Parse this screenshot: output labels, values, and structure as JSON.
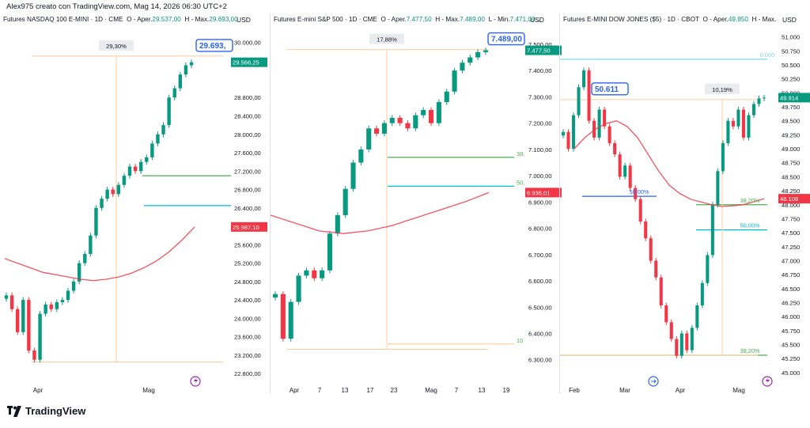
{
  "header": {
    "text": "Alex975 creato con TradingView.com, Mag 14, 2026 06:30 UTC+2"
  },
  "footer": {
    "brand": "TradingView"
  },
  "currency": "USD",
  "chart_data": [
    {
      "type": "candlestick",
      "title": "Futures NASDAQ 100 E-MINI · 1D · CME",
      "ohlc_text": {
        "o_label": "O - Aper.",
        "o": "29.537,00",
        "h_label": "H - Max.",
        "h": "29.693,00"
      },
      "ylim": [
        22700,
        30300
      ],
      "y_ticks": [
        "30.000,00",
        "29.600,00",
        "28.800,00",
        "28.400,00",
        "28.000,00",
        "27.600,00",
        "27.200,00",
        "26.800,00",
        "26.400,00",
        "25.600,00",
        "25.200,00",
        "24.800,00",
        "24.400,00",
        "24.000,00",
        "23.600,00",
        "23.200,00",
        "22.800,00"
      ],
      "x_ticks": [
        "Apr",
        "Mag"
      ],
      "callout": {
        "label": "29.693,00",
        "display": "29.693,"
      },
      "price_tags": [
        {
          "label": "29.566,25",
          "value": 29566,
          "color": "#089981"
        },
        {
          "label": "25.987,10",
          "value": 25987,
          "color": "#f23645"
        }
      ],
      "measure_label": "29,30%",
      "closes": [
        24500,
        24200,
        23700,
        24400,
        23300,
        23100,
        24100,
        24300,
        24200,
        24350,
        24400,
        24600,
        24800,
        25200,
        25400,
        25800,
        26400,
        26600,
        26800,
        26700,
        26900,
        27100,
        27300,
        27200,
        27400,
        27500,
        27800,
        28000,
        28200,
        28800,
        29000,
        29300,
        29500,
        29566
      ],
      "ma": [
        25300,
        25200,
        25100,
        25000,
        24950,
        24900,
        24850,
        24820,
        24850,
        24900,
        24980,
        25100,
        25250,
        25450,
        25700,
        25987
      ]
    },
    {
      "type": "candlestick",
      "title": "Futures E-mini S&P 500 · 1D · CME",
      "ohlc_text": {
        "o_label": "O - Aper.",
        "o": "7.477,50",
        "h_label": "H - Max.",
        "h": "7.489,00",
        "l_label": "L - Min.",
        "l": "7.471,00..."
      },
      "ylim": [
        6230,
        7560
      ],
      "y_ticks": [
        "7.500,00",
        "7.400,00",
        "7.300,00",
        "7.200,00",
        "7.100,00",
        "7.000,00",
        "6.900,00",
        "6.800,00",
        "6.700,00",
        "6.600,00",
        "6.500,00",
        "6.400,00",
        "6.300,00"
      ],
      "x_ticks": [
        "Apr",
        "7",
        "13",
        "17",
        "23",
        "Mag",
        "7",
        "13",
        "19"
      ],
      "callout": {
        "label": "7.489,00",
        "display": "7.489,00"
      },
      "price_tags": [
        {
          "label": "7.477,50",
          "value": 7477,
          "color": "#089981"
        },
        {
          "label": "6.936,01",
          "value": 6936,
          "color": "#f23645"
        }
      ],
      "measure_label": "17,88%",
      "fib_labels": [
        "38,",
        "50,",
        "10"
      ],
      "closes": [
        6550,
        6380,
        6520,
        6620,
        6640,
        6610,
        6640,
        6780,
        6850,
        6950,
        7050,
        7100,
        7180,
        7160,
        7200,
        7220,
        7200,
        7180,
        7230,
        7250,
        7200,
        7280,
        7320,
        7400,
        7430,
        7450,
        7470,
        7477
      ],
      "ma": [
        6850,
        6820,
        6790,
        6780,
        6790,
        6810,
        6840,
        6870,
        6900,
        6936
      ]
    },
    {
      "type": "candlestick",
      "title": "Futures E-MINI DOW JONES ($5) · 1D · CBOT",
      "ohlc_text": {
        "o_label": "O - Aper.",
        "o": "49.850",
        "h_label": "H - Max."
      },
      "ylim": [
        44900,
        51150
      ],
      "y_ticks": [
        "51.000",
        "50.750",
        "50.500",
        "50.250",
        "50.000",
        "49.750",
        "49.500",
        "49.250",
        "49.000",
        "48.750",
        "48.500",
        "48.250",
        "48.000",
        "47.750",
        "47.500",
        "47.250",
        "47.000",
        "46.750",
        "46.500",
        "46.250",
        "46.000",
        "45.750",
        "45.500",
        "45.250",
        "45.000"
      ],
      "x_ticks": [
        "Feb",
        "Mar",
        "Apr",
        "Mag"
      ],
      "callout": {
        "label": "50.611",
        "display": "50.611"
      },
      "price_tags": [
        {
          "label": "49.914",
          "value": 49914,
          "color": "#089981"
        },
        {
          "label": "48.108",
          "value": 48108,
          "color": "#f23645"
        }
      ],
      "measure_label": "10,19%",
      "fib_labels": [
        "0,000",
        "50,00%",
        "38,20%",
        "50,00%",
        "38,20%"
      ],
      "closes": [
        49300,
        49000,
        49600,
        50100,
        50400,
        49500,
        49200,
        49700,
        49400,
        49100,
        48900,
        48500,
        48700,
        48300,
        48100,
        47700,
        47400,
        47000,
        46700,
        46200,
        45900,
        45600,
        45300,
        45700,
        45400,
        45800,
        46200,
        46600,
        47100,
        48000,
        48600,
        49100,
        49500,
        49400,
        49700,
        49200,
        49600,
        49800,
        49900,
        49914
      ],
      "ma": [
        49000,
        49200,
        49350,
        49450,
        49500,
        49400,
        49200,
        48900,
        48600,
        48350,
        48200,
        48100,
        48050,
        48000,
        47970,
        47980,
        48000,
        48050,
        48108
      ]
    }
  ]
}
